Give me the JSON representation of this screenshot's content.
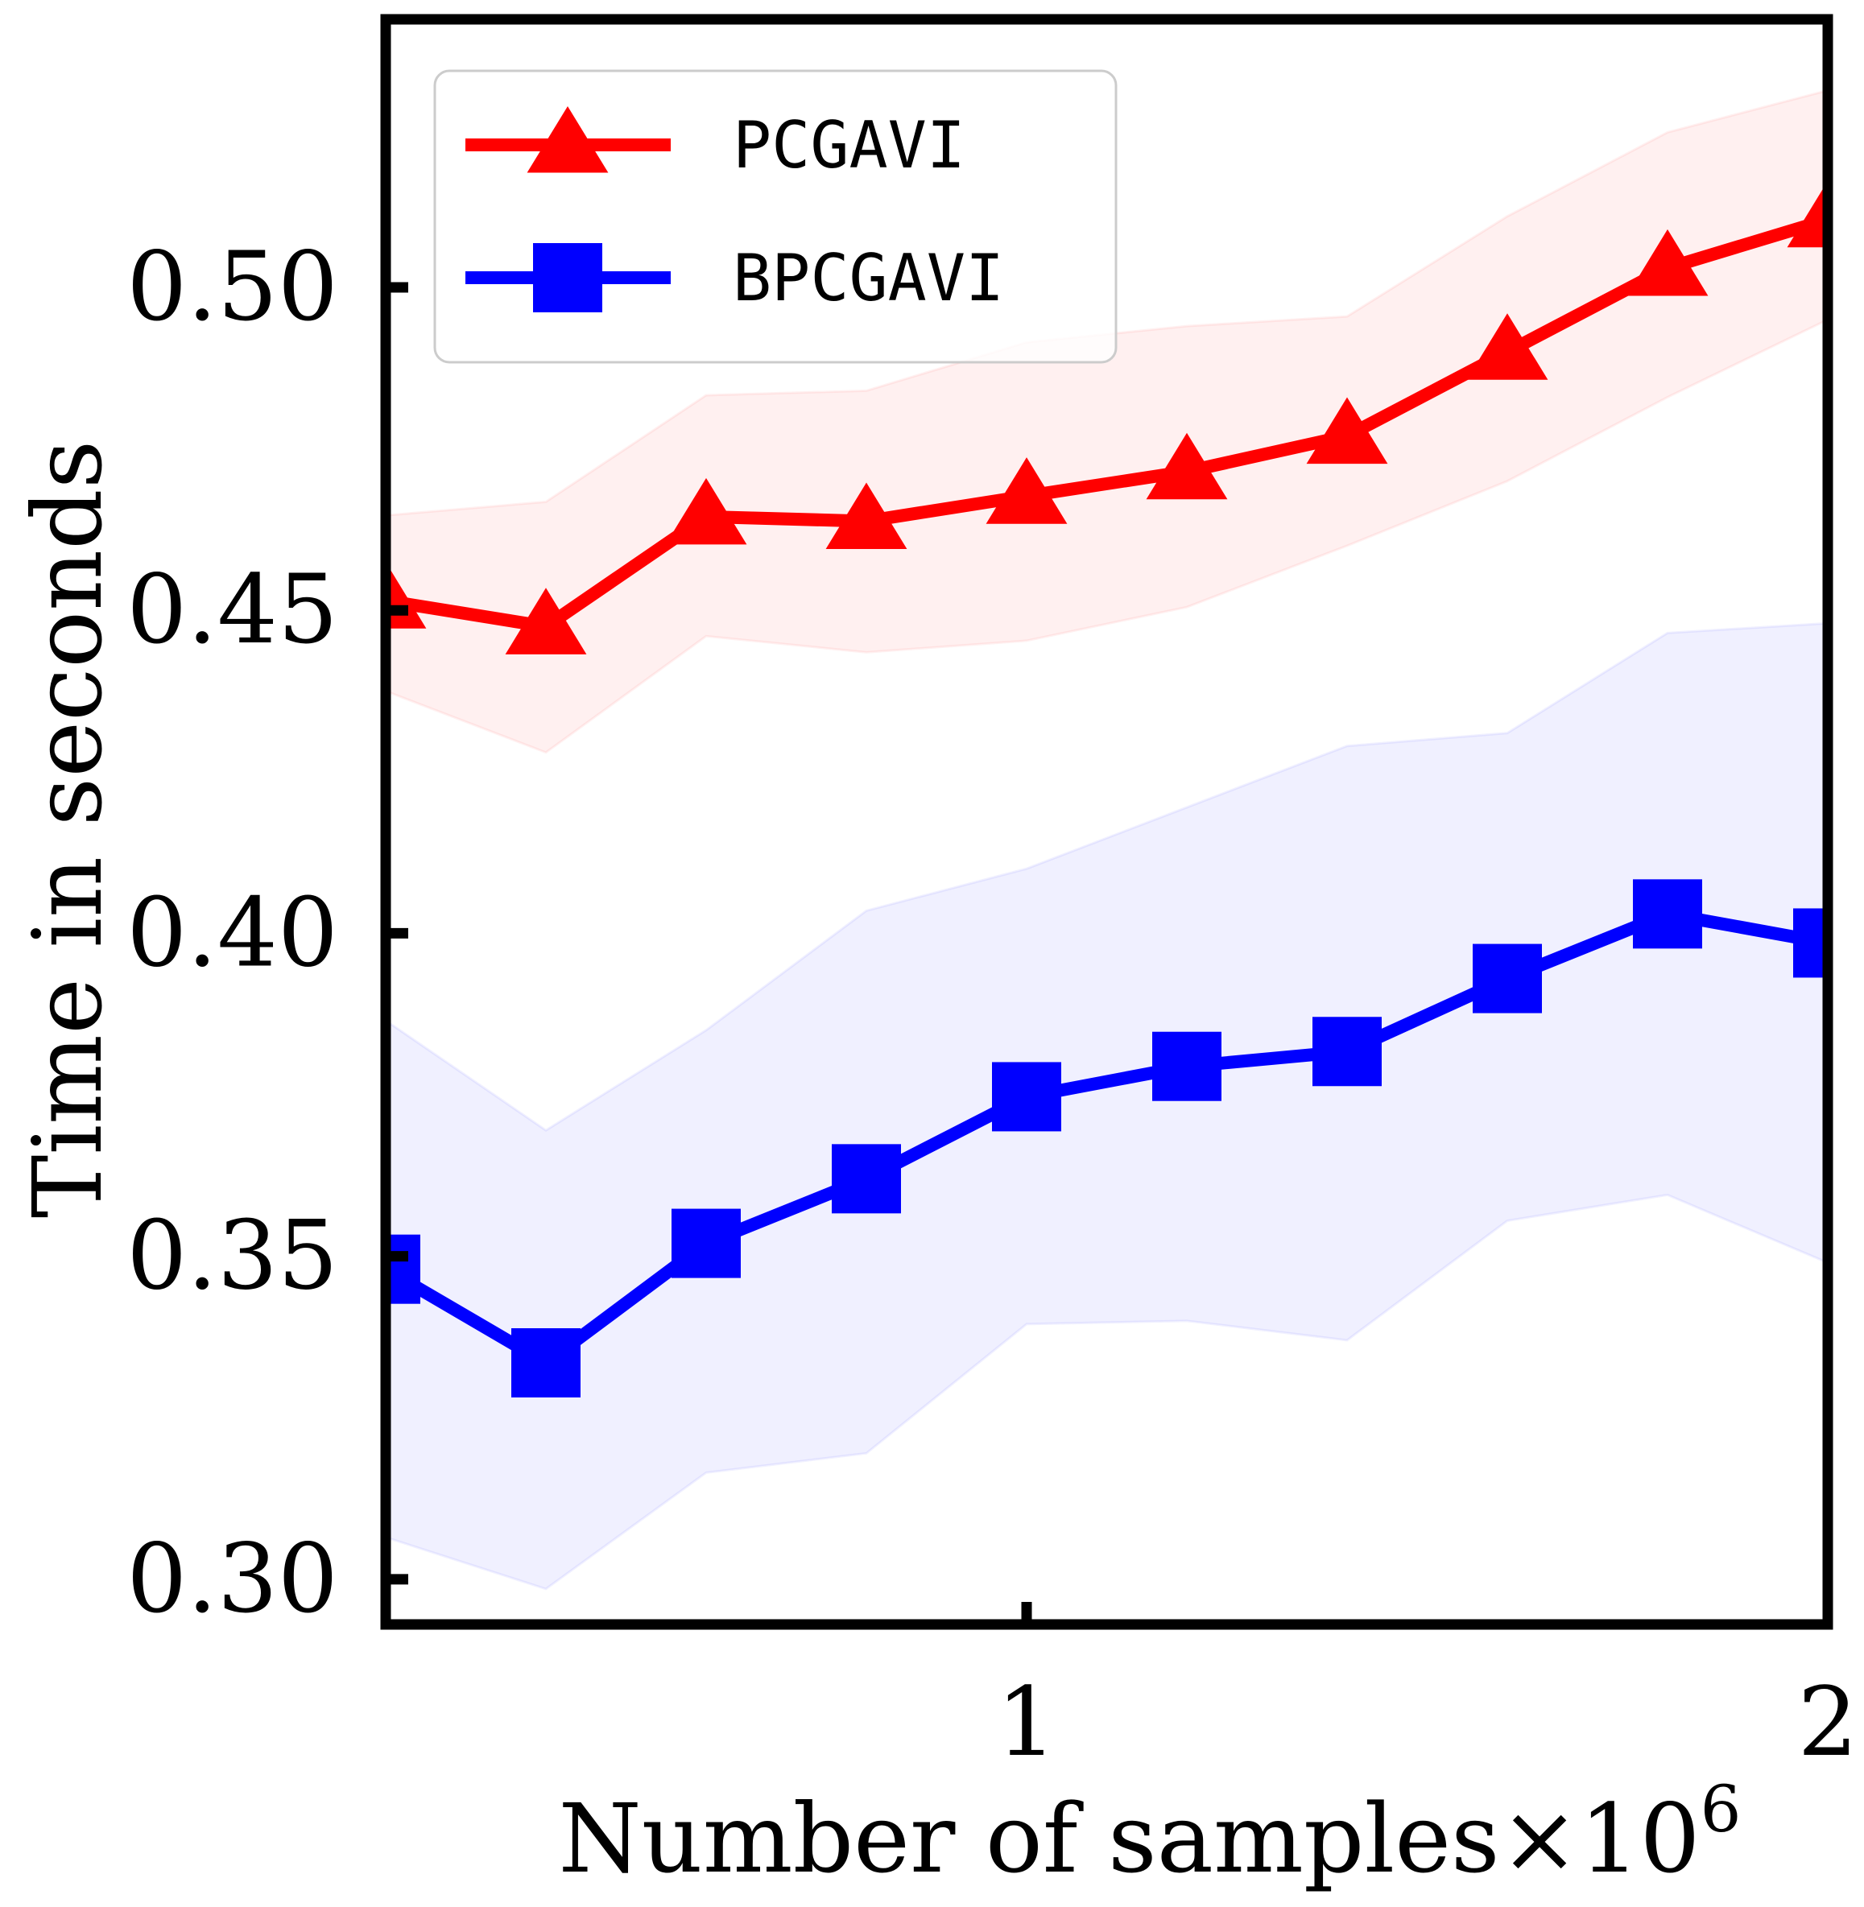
{
  "chart_data": {
    "type": "line",
    "xlabel": "Number of samples",
    "xlabel_multiplier": "×10",
    "xlabel_exponent": "6",
    "ylabel": "Time in seconds",
    "xlim": [
      0.2,
      2.0
    ],
    "ylim": [
      0.293,
      0.5415
    ],
    "x_ticks": [
      1,
      2
    ],
    "x_tick_labels": [
      "1",
      "2"
    ],
    "y_ticks": [
      0.3,
      0.35,
      0.4,
      0.45,
      0.5
    ],
    "y_tick_labels": [
      "0.30",
      "0.35",
      "0.40",
      "0.45",
      "0.50"
    ],
    "grid": false,
    "legend_position": "top-left",
    "x": [
      0.2,
      0.4,
      0.6,
      0.8,
      1.0,
      1.2,
      1.4,
      1.6,
      1.8,
      2.0
    ],
    "series": [
      {
        "name": "PCGAVI",
        "color": "#ff0000",
        "marker": "triangle",
        "values": [
          0.4515,
          0.4475,
          0.4645,
          0.4638,
          0.4677,
          0.4715,
          0.477,
          0.49,
          0.503,
          0.5105
        ],
        "band_upper": [
          0.4647,
          0.4668,
          0.4833,
          0.484,
          0.4915,
          0.494,
          0.4955,
          0.511,
          0.524,
          0.5305
        ],
        "band_lower": [
          0.4375,
          0.428,
          0.446,
          0.4435,
          0.4453,
          0.4505,
          0.46,
          0.47,
          0.483,
          0.495
        ]
      },
      {
        "name": "BPCGAVI",
        "color": "#0000ff",
        "marker": "square",
        "values": [
          0.348,
          0.3335,
          0.352,
          0.362,
          0.3747,
          0.3794,
          0.3817,
          0.393,
          0.403,
          0.3985
        ],
        "band_upper": [
          0.3865,
          0.3695,
          0.385,
          0.4035,
          0.41,
          0.4195,
          0.429,
          0.431,
          0.4465,
          0.448
        ],
        "band_lower": [
          0.3065,
          0.2985,
          0.3165,
          0.3195,
          0.3395,
          0.34,
          0.337,
          0.3555,
          0.3595,
          0.349
        ]
      }
    ]
  }
}
